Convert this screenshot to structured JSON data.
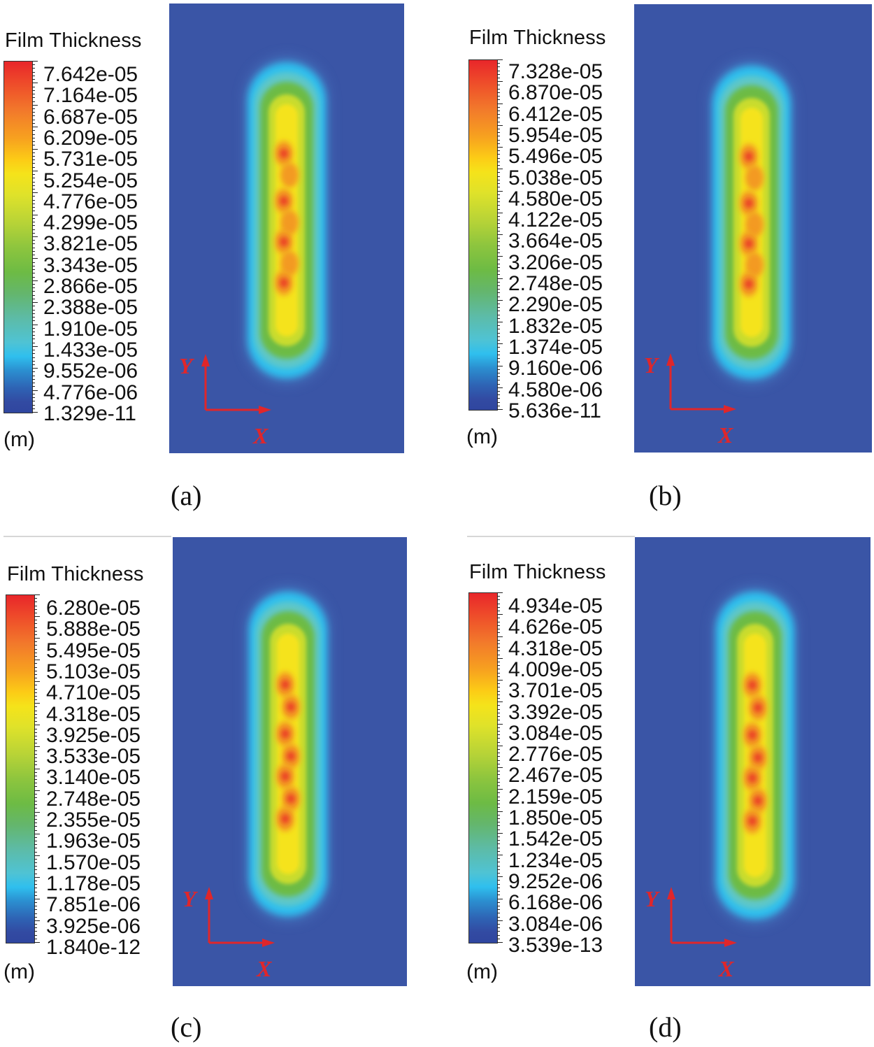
{
  "figure": {
    "panels": [
      {
        "id": "a",
        "caption": "(a)",
        "legend_title": "Film Thickness",
        "unit": "(m)",
        "ticks": [
          "7.642e-05",
          "7.164e-05",
          "6.687e-05",
          "6.209e-05",
          "5.731e-05",
          "5.254e-05",
          "4.776e-05",
          "4.299e-05",
          "3.821e-05",
          "3.343e-05",
          "2.866e-05",
          "2.388e-05",
          "1.910e-05",
          "1.433e-05",
          "9.552e-06",
          "4.776e-06",
          "1.329e-11"
        ],
        "axis_x": "X",
        "axis_y": "Y"
      },
      {
        "id": "b",
        "caption": "(b)",
        "legend_title": "Film Thickness",
        "unit": "(m)",
        "ticks": [
          "7.328e-05",
          "6.870e-05",
          "6.412e-05",
          "5.954e-05",
          "5.496e-05",
          "5.038e-05",
          "4.580e-05",
          "4.122e-05",
          "3.664e-05",
          "3.206e-05",
          "2.748e-05",
          "2.290e-05",
          "1.832e-05",
          "1.374e-05",
          "9.160e-06",
          "4.580e-06",
          "5.636e-11"
        ],
        "axis_x": "X",
        "axis_y": "Y"
      },
      {
        "id": "c",
        "caption": "(c)",
        "legend_title": "Film Thickness",
        "unit": "(m)",
        "ticks": [
          "6.280e-05",
          "5.888e-05",
          "5.495e-05",
          "5.103e-05",
          "4.710e-05",
          "4.318e-05",
          "3.925e-05",
          "3.533e-05",
          "3.140e-05",
          "2.748e-05",
          "2.355e-05",
          "1.963e-05",
          "1.570e-05",
          "1.178e-05",
          "7.851e-06",
          "3.925e-06",
          "1.840e-12"
        ],
        "axis_x": "X",
        "axis_y": "Y"
      },
      {
        "id": "d",
        "caption": "(d)",
        "legend_title": "Film Thickness",
        "unit": "(m)",
        "ticks": [
          "4.934e-05",
          "4.626e-05",
          "4.318e-05",
          "4.009e-05",
          "3.701e-05",
          "3.392e-05",
          "3.084e-05",
          "2.776e-05",
          "2.467e-05",
          "2.159e-05",
          "1.850e-05",
          "1.542e-05",
          "1.234e-05",
          "9.252e-06",
          "6.168e-06",
          "3.084e-06",
          "3.539e-13"
        ],
        "axis_x": "X",
        "axis_y": "Y"
      }
    ]
  },
  "colors": {
    "background": "#3a55a6",
    "max": "#e8262a",
    "yellow": "#f5e31a",
    "green": "#6dbb44",
    "cyan": "#2fbfee",
    "min": "#30469f",
    "axis_arrow": "#e0262a"
  },
  "chart_data": [
    {
      "type": "heatmap",
      "title": "Film Thickness",
      "panel": "(a)",
      "unit": "m",
      "colorbar_range": [
        1.329e-11,
        7.642e-05
      ],
      "colorbar_ticks": [
        7.642e-05,
        7.164e-05,
        6.687e-05,
        6.209e-05,
        5.731e-05,
        5.254e-05,
        4.776e-05,
        4.299e-05,
        3.821e-05,
        3.343e-05,
        2.866e-05,
        2.388e-05,
        1.91e-05,
        1.433e-05,
        9.552e-06,
        4.776e-06,
        1.329e-11
      ],
      "xlabel": "X",
      "ylabel": "Y",
      "description": "Vertically elongated film deposit; peak (red) spots along the center line, decreasing outward through yellow, green, cyan to dark blue background"
    },
    {
      "type": "heatmap",
      "title": "Film Thickness",
      "panel": "(b)",
      "unit": "m",
      "colorbar_range": [
        5.636e-11,
        7.328e-05
      ],
      "colorbar_ticks": [
        7.328e-05,
        6.87e-05,
        6.412e-05,
        5.954e-05,
        5.496e-05,
        5.038e-05,
        4.58e-05,
        4.122e-05,
        3.664e-05,
        3.206e-05,
        2.748e-05,
        2.29e-05,
        1.832e-05,
        1.374e-05,
        9.16e-06,
        4.58e-06,
        5.636e-11
      ],
      "xlabel": "X",
      "ylabel": "Y"
    },
    {
      "type": "heatmap",
      "title": "Film Thickness",
      "panel": "(c)",
      "unit": "m",
      "colorbar_range": [
        1.84e-12,
        6.28e-05
      ],
      "colorbar_ticks": [
        6.28e-05,
        5.888e-05,
        5.495e-05,
        5.103e-05,
        4.71e-05,
        4.318e-05,
        3.925e-05,
        3.533e-05,
        3.14e-05,
        2.748e-05,
        2.355e-05,
        1.963e-05,
        1.57e-05,
        1.178e-05,
        7.851e-06,
        3.925e-06,
        1.84e-12
      ],
      "xlabel": "X",
      "ylabel": "Y"
    },
    {
      "type": "heatmap",
      "title": "Film Thickness",
      "panel": "(d)",
      "unit": "m",
      "colorbar_range": [
        3.539e-13,
        4.934e-05
      ],
      "colorbar_ticks": [
        4.934e-05,
        4.626e-05,
        4.318e-05,
        4.009e-05,
        3.701e-05,
        3.392e-05,
        3.084e-05,
        2.776e-05,
        2.467e-05,
        2.159e-05,
        1.85e-05,
        1.542e-05,
        1.234e-05,
        9.252e-06,
        6.168e-06,
        3.084e-06,
        3.539e-13
      ],
      "xlabel": "X",
      "ylabel": "Y"
    }
  ]
}
